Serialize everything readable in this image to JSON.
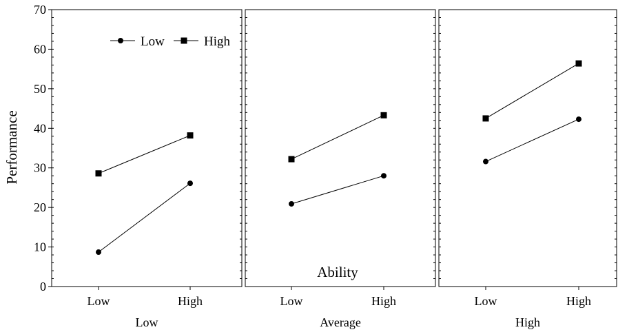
{
  "chart_data": {
    "type": "line",
    "title": "",
    "ylabel": "Performance",
    "ylim": [
      0,
      70
    ],
    "yticks": [
      0,
      10,
      20,
      30,
      40,
      50,
      60,
      70
    ],
    "x_categories": [
      "Low",
      "High"
    ],
    "panel_annotation": "Ability",
    "legend": {
      "placement": "top-left",
      "entries": [
        {
          "name": "Low",
          "marker": "circle"
        },
        {
          "name": "High",
          "marker": "square"
        }
      ]
    },
    "panels": [
      {
        "label": "Low",
        "series": [
          {
            "name": "Low",
            "marker": "circle",
            "values": [
              8.7,
              26.1
            ]
          },
          {
            "name": "High",
            "marker": "square",
            "values": [
              28.6,
              38.2
            ]
          }
        ]
      },
      {
        "label": "Average",
        "series": [
          {
            "name": "Low",
            "marker": "circle",
            "values": [
              20.9,
              28.0
            ]
          },
          {
            "name": "High",
            "marker": "square",
            "values": [
              32.2,
              43.3
            ]
          }
        ]
      },
      {
        "label": "High",
        "series": [
          {
            "name": "Low",
            "marker": "circle",
            "values": [
              31.6,
              42.3
            ]
          },
          {
            "name": "High",
            "marker": "square",
            "values": [
              42.5,
              56.4
            ]
          }
        ]
      }
    ]
  }
}
